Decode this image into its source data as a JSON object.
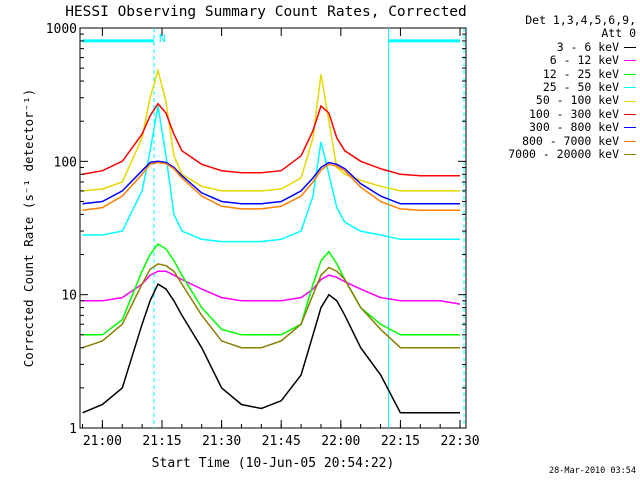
{
  "chart_data": {
    "type": "line",
    "title": "HESSI Observing Summary Count Rates, Corrected",
    "xlabel": "Start Time (10-Jun-05 20:54:22)",
    "ylabel": "Corrected Count Rate (s⁻¹ detector⁻¹)",
    "y_scale": "log",
    "xlim": [
      "20:54:22",
      "22:31:30"
    ],
    "ylim": [
      1,
      1000
    ],
    "x_tick_labels": [
      "21:00",
      "21:15",
      "21:30",
      "21:45",
      "22:00",
      "22:15",
      "22:30"
    ],
    "y_tick_labels": [
      "1",
      "10",
      "100",
      "1000"
    ],
    "legend_header": [
      "Det 1,3,4,5,6,9,",
      "Att 0"
    ],
    "legend_position": "outside-right",
    "annotations": [
      {
        "text": "N",
        "time": "21:13"
      }
    ],
    "time_markers": [
      "21:13",
      "22:12",
      "22:31"
    ],
    "bars": [
      {
        "from": "20:55",
        "to": "21:13",
        "y": 800
      },
      {
        "from": "22:12",
        "to": "22:30",
        "y": 800
      }
    ],
    "x": [
      "20:55",
      "21:00",
      "21:05",
      "21:10",
      "21:12",
      "21:14",
      "21:16",
      "21:18",
      "21:20",
      "21:25",
      "21:30",
      "21:35",
      "21:40",
      "21:45",
      "21:50",
      "21:53",
      "21:55",
      "21:57",
      "21:59",
      "22:01",
      "22:05",
      "22:10",
      "22:15",
      "22:20",
      "22:25",
      "22:30"
    ],
    "series": [
      {
        "name": "3 - 6 keV",
        "color": "#000000",
        "values": [
          1.3,
          1.5,
          2.0,
          6.0,
          9.0,
          12.0,
          11.0,
          9.0,
          7.0,
          4.0,
          2.0,
          1.5,
          1.4,
          1.6,
          2.5,
          5.0,
          8.0,
          10.0,
          9.0,
          7.0,
          4.0,
          2.5,
          1.3,
          1.3,
          1.3,
          1.3
        ]
      },
      {
        "name": "6 - 12 keV",
        "color": "#ff00ff",
        "values": [
          9.0,
          9.0,
          9.5,
          12.0,
          14.0,
          15.0,
          15.0,
          14.0,
          13.0,
          11.0,
          9.5,
          9.0,
          9.0,
          9.0,
          9.5,
          11.0,
          13.0,
          14.0,
          13.5,
          12.5,
          11.0,
          9.5,
          9.0,
          9.0,
          9.0,
          8.5
        ]
      },
      {
        "name": "12 - 25 keV",
        "color": "#00ff00",
        "values": [
          5.0,
          5.0,
          6.5,
          15.0,
          20.0,
          24.0,
          22.0,
          18.0,
          14.0,
          8.0,
          5.5,
          5.0,
          5.0,
          5.0,
          6.0,
          12.0,
          18.0,
          21.0,
          17.0,
          13.0,
          8.0,
          6.0,
          5.0,
          5.0,
          5.0,
          5.0
        ]
      },
      {
        "name": "25 - 50 keV",
        "color": "#00ffff",
        "values": [
          28.0,
          28.0,
          30.0,
          60.0,
          120.0,
          260.0,
          110.0,
          40.0,
          30.0,
          26.0,
          25.0,
          25.0,
          25.0,
          26.0,
          30.0,
          55.0,
          140.0,
          80.0,
          45.0,
          35.0,
          30.0,
          28.0,
          26.0,
          26.0,
          26.0,
          26.0
        ]
      },
      {
        "name": "50 - 100 keV",
        "color": "#e6d800",
        "values": [
          60.0,
          62.0,
          70.0,
          150.0,
          300.0,
          480.0,
          280.0,
          110.0,
          80.0,
          65.0,
          60.0,
          60.0,
          60.0,
          62.0,
          75.0,
          150.0,
          450.0,
          200.0,
          90.0,
          80.0,
          72.0,
          65.0,
          60.0,
          60.0,
          60.0,
          60.0
        ]
      },
      {
        "name": "100 - 300 keV",
        "color": "#ff0000",
        "values": [
          80.0,
          85.0,
          100.0,
          160.0,
          220.0,
          270.0,
          230.0,
          160.0,
          120.0,
          95.0,
          85.0,
          82.0,
          82.0,
          85.0,
          110.0,
          170.0,
          260.0,
          230.0,
          150.0,
          120.0,
          100.0,
          88.0,
          80.0,
          78.0,
          78.0,
          78.0
        ]
      },
      {
        "name": "300 - 800 keV",
        "color": "#0000ff",
        "values": [
          48.0,
          50.0,
          60.0,
          85.0,
          98.0,
          100.0,
          98.0,
          90.0,
          78.0,
          58.0,
          50.0,
          48.0,
          48.0,
          50.0,
          60.0,
          75.0,
          90.0,
          98.0,
          95.0,
          88.0,
          68.0,
          55.0,
          48.0,
          48.0,
          48.0,
          48.0
        ]
      },
      {
        "name": "800 - 7000 keV",
        "color": "#ff8000",
        "values": [
          43.0,
          45.0,
          55.0,
          80.0,
          95.0,
          98.0,
          96.0,
          88.0,
          75.0,
          55.0,
          46.0,
          44.0,
          44.0,
          46.0,
          55.0,
          70.0,
          86.0,
          95.0,
          92.0,
          85.0,
          64.0,
          50.0,
          44.0,
          43.0,
          43.0,
          43.0
        ]
      },
      {
        "name": "7000 - 20000 keV",
        "color": "#8b7d00",
        "values": [
          4.0,
          4.5,
          6.0,
          12.0,
          15.5,
          17.0,
          16.5,
          15.0,
          12.0,
          7.0,
          4.5,
          4.0,
          4.0,
          4.5,
          6.0,
          10.0,
          14.0,
          16.0,
          15.0,
          13.0,
          8.0,
          5.5,
          4.0,
          4.0,
          4.0,
          4.0
        ]
      }
    ]
  },
  "footer": {
    "timestamp": "28-Mar-2010 03:54"
  }
}
